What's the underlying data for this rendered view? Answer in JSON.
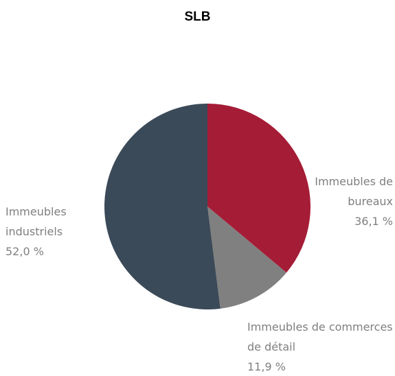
{
  "chart_data": {
    "type": "pie",
    "title": "SLB",
    "categories": [
      "Immeubles de bureaux",
      "Immeubles de commerces de détail",
      "Immeubles industriels"
    ],
    "values": [
      36.1,
      11.9,
      52.0
    ],
    "value_labels": [
      "36,1 %",
      "11,9 %",
      "52,0 %"
    ],
    "colors": [
      "#a51c36",
      "#808080",
      "#3b4a58"
    ]
  }
}
